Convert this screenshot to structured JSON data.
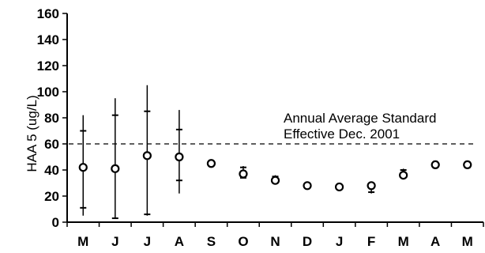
{
  "chart_data": {
    "type": "scatter",
    "title": "",
    "xlabel": "",
    "ylabel": "HAA 5 (ug/L)",
    "categories": [
      "M",
      "J",
      "J",
      "A",
      "S",
      "O",
      "N",
      "D",
      "J",
      "F",
      "M",
      "A",
      "M"
    ],
    "ylim": [
      0,
      160
    ],
    "yticks": [
      0,
      20,
      40,
      60,
      80,
      100,
      120,
      140,
      160
    ],
    "grid": false,
    "legend": "none",
    "series": [
      {
        "marker": "open-circle",
        "values": [
          42,
          41,
          51,
          50,
          45,
          37,
          32,
          28,
          27,
          28,
          36,
          44,
          44
        ]
      }
    ],
    "range_bars": [
      {
        "min": 5,
        "max": 82,
        "ticks": [
          11,
          70
        ]
      },
      {
        "min": 3,
        "max": 95,
        "ticks": [
          3,
          82
        ]
      },
      {
        "min": 5,
        "max": 105,
        "ticks": [
          6,
          85
        ]
      },
      {
        "min": 22,
        "max": 86,
        "ticks": [
          32,
          71
        ]
      },
      {
        "min": 44,
        "max": 47,
        "ticks": [
          45,
          46
        ]
      },
      {
        "min": 34,
        "max": 43,
        "ticks": [
          34,
          42
        ]
      },
      {
        "min": 29,
        "max": 36,
        "ticks": [
          30,
          35
        ]
      },
      {
        "min": 27,
        "max": 29,
        "ticks": [
          27,
          28
        ]
      },
      {
        "min": 26,
        "max": 28,
        "ticks": [
          26,
          27
        ]
      },
      {
        "min": 22,
        "max": 30,
        "ticks": [
          23,
          29
        ]
      },
      {
        "min": 34,
        "max": 41,
        "ticks": [
          35,
          40
        ]
      },
      {
        "min": 43,
        "max": 46,
        "ticks": [
          44,
          45
        ]
      },
      {
        "min": 41,
        "max": 47,
        "ticks": [
          42,
          46
        ]
      }
    ],
    "reference_line": {
      "value": 60,
      "style": "dashed",
      "label_lines": [
        "Annual Average Standard",
        "Effective Dec. 2001"
      ]
    },
    "colors": {
      "axis": "#000000",
      "marker": "#000000",
      "background": "#ffffff"
    }
  }
}
